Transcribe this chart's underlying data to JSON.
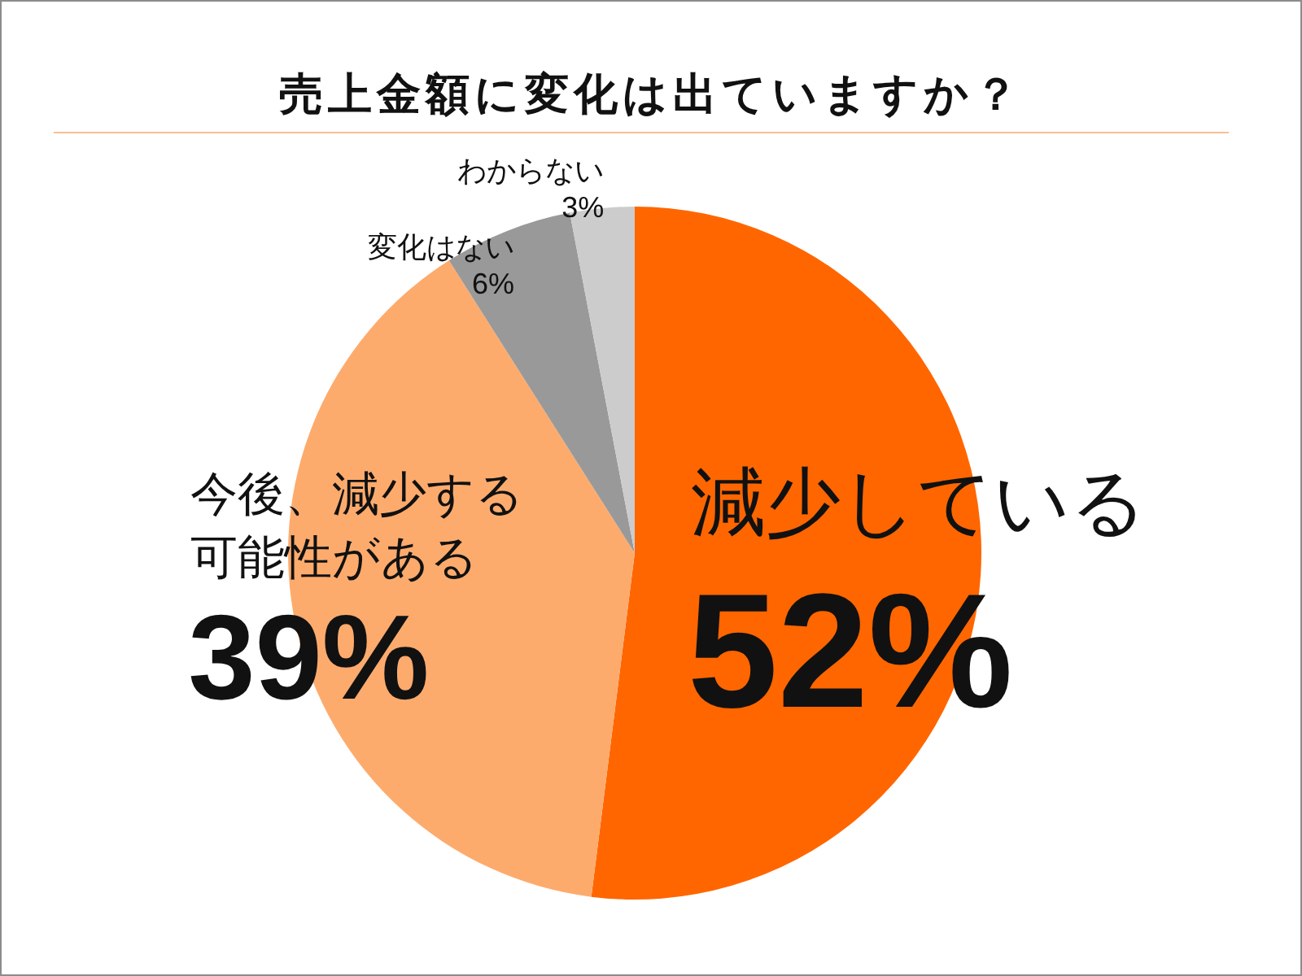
{
  "chart_data": {
    "type": "pie",
    "title": "売上金額に変化は出ていますか？",
    "categories": [
      "減少している",
      "今後、減少する可能性がある",
      "変化はない",
      "わからない"
    ],
    "values": [
      52,
      39,
      6,
      3
    ],
    "colors": [
      "#ff6600",
      "#fdab6d",
      "#999999",
      "#cccccc"
    ],
    "value_labels": [
      "52%",
      "39%",
      "6%",
      "3%"
    ],
    "legend": false
  }
}
